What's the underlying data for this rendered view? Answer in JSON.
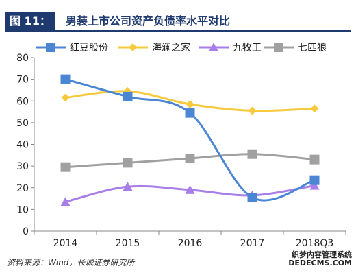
{
  "header": {
    "figure_label": "图 11：",
    "title": "男装上市公司资产负债率水平对比"
  },
  "footer": {
    "source": "资料来源：Wind，长城证券研究所",
    "watermark_1": "织梦内容管理系统",
    "watermark_2": "DEDECMS.COM"
  },
  "chart_data": {
    "type": "line",
    "categories": [
      "2014",
      "2015",
      "2016",
      "2017",
      "2018Q3"
    ],
    "series": [
      {
        "name": "红豆股份",
        "color": "#4a86d4",
        "marker": "square",
        "values": [
          70,
          62,
          54.5,
          15.5,
          23.5
        ]
      },
      {
        "name": "海澜之家",
        "color": "#f7c93c",
        "marker": "diamond",
        "values": [
          61.5,
          64.5,
          58.5,
          55.5,
          56.5
        ]
      },
      {
        "name": "九牧王",
        "color": "#a87ee8",
        "marker": "triangle",
        "values": [
          13.5,
          20.5,
          19,
          16.5,
          21
        ]
      },
      {
        "name": "七匹狼",
        "color": "#a0a0a0",
        "marker": "square",
        "values": [
          29.5,
          31.5,
          33.5,
          35.5,
          33
        ]
      }
    ],
    "yticks": [
      0,
      10,
      20,
      30,
      40,
      50,
      60,
      70,
      80
    ],
    "ylim": [
      0,
      80
    ],
    "grid": false,
    "legend": "top"
  }
}
